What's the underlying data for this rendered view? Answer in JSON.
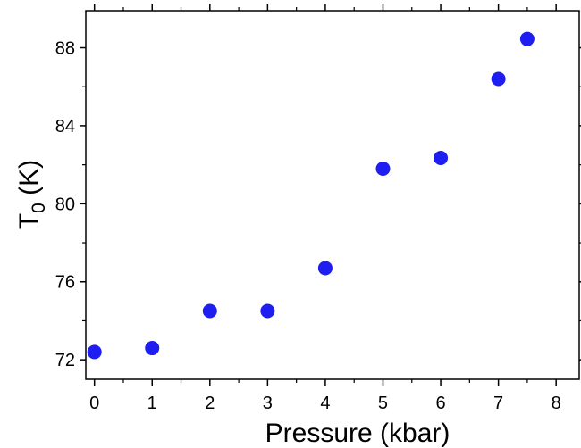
{
  "chart_data": {
    "type": "scatter",
    "xlabel": "Pressure (kbar)",
    "ylabel": {
      "main": "T",
      "subscript": "0",
      "suffix": " (K)"
    },
    "xlim": [
      -0.15,
      8.4
    ],
    "ylim": [
      71.0,
      89.9
    ],
    "xticks": [
      0,
      1,
      2,
      3,
      4,
      5,
      6,
      7,
      8
    ],
    "yticks": [
      72,
      76,
      80,
      84,
      88
    ],
    "x": [
      0,
      1,
      2,
      3,
      4,
      5,
      6,
      7,
      7.5
    ],
    "y": [
      72.4,
      72.6,
      74.5,
      74.5,
      76.7,
      81.8,
      82.35,
      86.4,
      88.45
    ],
    "marker_color": "#1e1ef0",
    "grid": false,
    "legend": "none"
  }
}
